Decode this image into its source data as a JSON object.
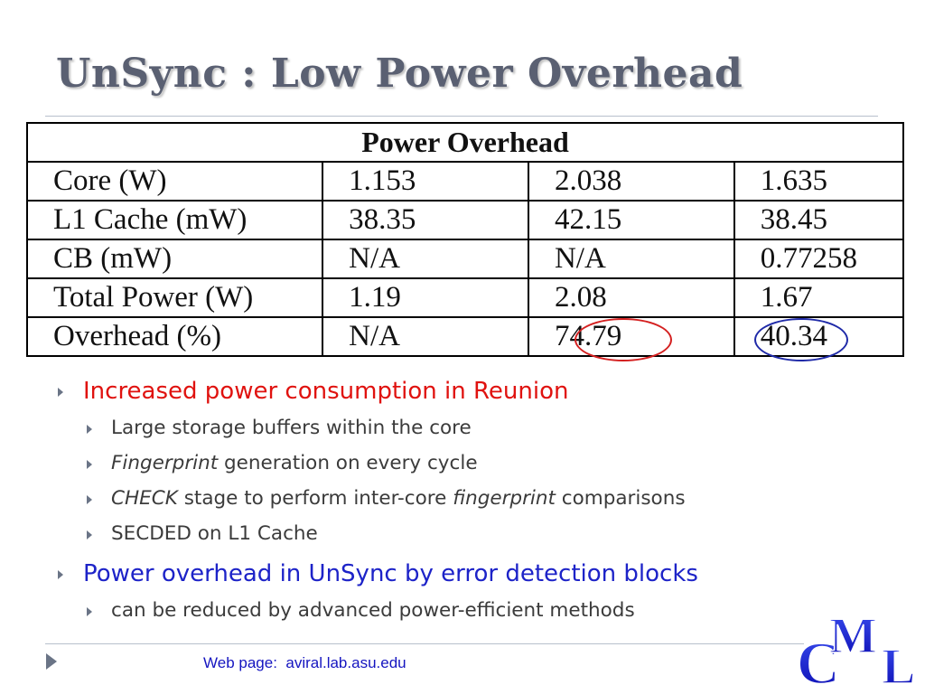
{
  "slide": {
    "title": "UnSync : Low Power Overhead",
    "table": {
      "header": "Power  Overhead",
      "rows": [
        {
          "label": "Core  (W)",
          "v1": "1.153",
          "v2": "2.038",
          "v3": "1.635"
        },
        {
          "label": "L1  Cache  (mW)",
          "v1": "38.35",
          "v2": "42.15",
          "v3": "38.45"
        },
        {
          "label": "CB  (mW)",
          "v1": "N/A",
          "v2": "N/A",
          "v3": "0.77258"
        },
        {
          "label": "Total  Power  (W)",
          "v1": "1.19",
          "v2": "2.08",
          "v3": "1.67"
        },
        {
          "label": "Overhead  (%)",
          "v1": "N/A",
          "v2": "74.79",
          "v3": "40.34"
        }
      ],
      "highlight_colors": {
        "red": "#d42020",
        "blue": "#1f2aa8"
      }
    },
    "bullets": {
      "b1": "Increased power consumption in Reunion",
      "b1_subs": {
        "s1": "Large storage buffers within the core",
        "s2_em": "Fingerprint",
        "s2_rest": " generation on every cycle",
        "s3_em1": "CHECK",
        "s3_mid": " stage to perform inter-core ",
        "s3_em2": "fingerprint",
        "s3_end": " comparisons",
        "s4": "SECDED on L1 Cache"
      },
      "b2": "Power overhead in UnSync by error detection blocks",
      "b2_subs": {
        "s1": "can be reduced by advanced power-efficient methods"
      }
    },
    "footer": {
      "web_text": "Web page:  aviral.lab.asu.edu"
    },
    "logo": {
      "c": "C",
      "m": "M",
      "l": "L",
      "color": "#1515d0"
    },
    "colors": {
      "title": "#5a6072",
      "bullet_red": "#e0120f",
      "bullet_blue": "#1d23c8",
      "arrow": "#6a7486"
    }
  }
}
